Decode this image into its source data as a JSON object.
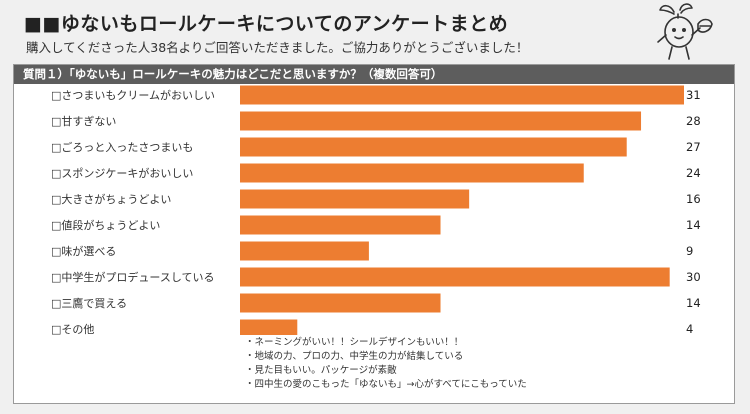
{
  "header": {
    "title": "■■ゆないもロールケーキについてのアンケートまとめ",
    "subtitle": "購入してくださった人38名よりご回答いただきました。ご協力ありがとうございました！"
  },
  "question": {
    "label": "質問１）「ゆないも」ロールケーキの魅力はどこだと思いますか？（複数回答可）"
  },
  "colors": {
    "bar": "#ed7d31",
    "header_bar": "#5d5d5d"
  },
  "chart_data": {
    "type": "bar",
    "orientation": "horizontal",
    "categories": [
      "□さつまいもクリームがおいしい",
      "□甘すぎない",
      "□ごろっと入ったさつまいも",
      "□スポンジケーキがおいしい",
      "□大きさがちょうどよい",
      "□値段がちょうどよい",
      "□味が選べる",
      "□中学生がプロデュースしている",
      "□三鷹で買える",
      "□その他"
    ],
    "values": [
      31,
      28,
      27,
      24,
      16,
      14,
      9,
      30,
      14,
      4
    ],
    "value_labels": [
      "31",
      "28",
      "27",
      "24",
      "16",
      "14",
      "9",
      "30",
      "14",
      "4"
    ],
    "xlim": [
      0,
      31
    ],
    "grid": false,
    "legend": "none"
  },
  "comments": [
    "・ネーミングがいい！！シールデザインもいい！！",
    "・地域の力、プロの力、中学生の力が結集している",
    "・見た目もいい。パッケージが素敵",
    "・四中生の愛のこもった「ゆないも」→心がすべてにこもっていた"
  ]
}
